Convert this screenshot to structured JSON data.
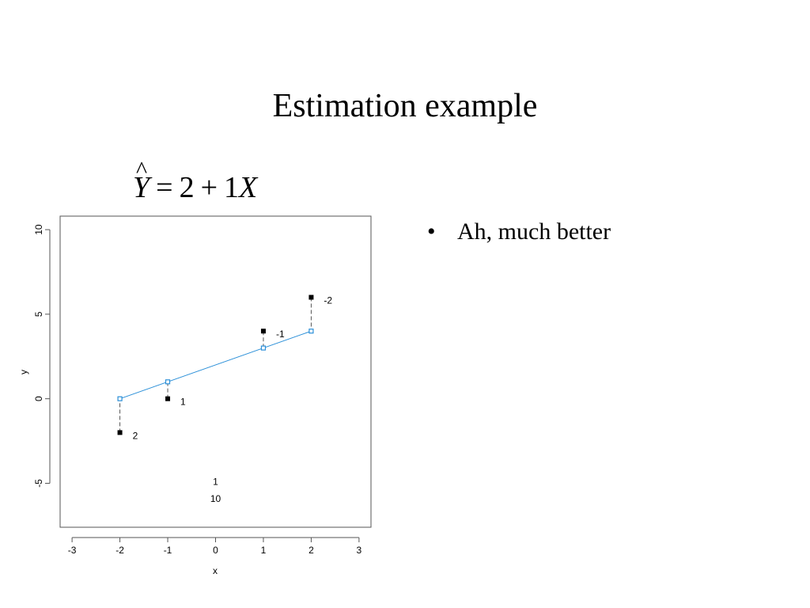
{
  "slide": {
    "title": "Estimation example",
    "equation": {
      "lhs": "Y",
      "hat": "^",
      "equals": "=",
      "intercept": "2",
      "plus": "+",
      "slope": "1",
      "rhs_var": "X"
    },
    "bullets": [
      {
        "marker": "•",
        "text": "Ah, much better"
      }
    ]
  },
  "chart_data": {
    "type": "scatter",
    "xlabel": "x",
    "ylabel": "y",
    "xlim": [
      -3.25,
      3.25
    ],
    "ylim": [
      -7.6,
      10.8
    ],
    "x_ticks": [
      -3,
      -2,
      -1,
      0,
      1,
      2,
      3
    ],
    "y_ticks": [
      -5,
      0,
      5,
      10
    ],
    "grid": false,
    "fitted_line": {
      "intercept": 2,
      "slope": 1,
      "x_range": [
        -2,
        2
      ],
      "color": "#2a8fd8"
    },
    "observed": [
      {
        "x": -2,
        "y": -2,
        "residual_label": "2"
      },
      {
        "x": -1,
        "y": 0,
        "residual_label": "1"
      },
      {
        "x": 1,
        "y": 4,
        "residual_label": "-1"
      },
      {
        "x": 2,
        "y": 6,
        "residual_label": "-2"
      }
    ],
    "fitted": [
      {
        "x": -2,
        "y": 0
      },
      {
        "x": -1,
        "y": 1
      },
      {
        "x": 1,
        "y": 3
      },
      {
        "x": 2,
        "y": 4
      }
    ],
    "annotations": [
      {
        "x": 0,
        "y": -5.1,
        "text": "1"
      },
      {
        "x": 0,
        "y": -6.1,
        "text": "10"
      }
    ],
    "colors": {
      "observed": "#000000",
      "fitted": "#2a8fd8",
      "residual_line": "#555555"
    }
  }
}
